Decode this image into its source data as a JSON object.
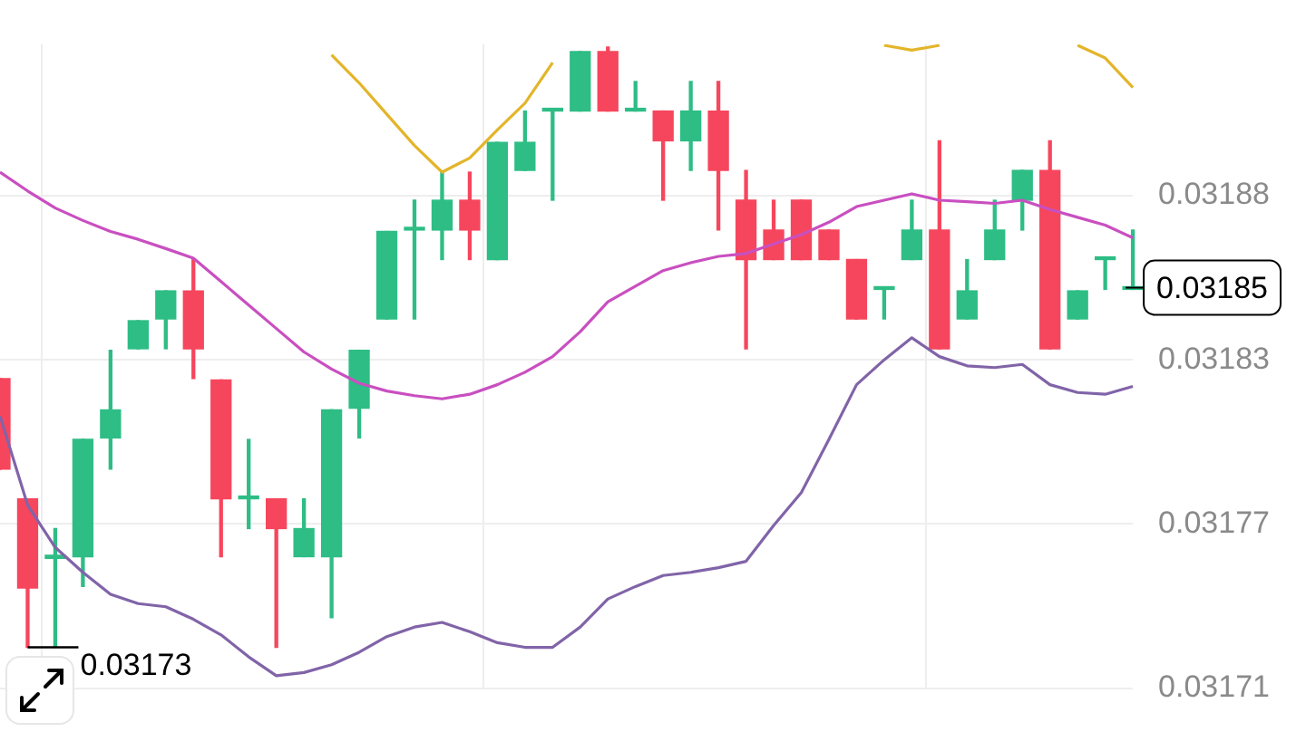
{
  "chart_data": {
    "type": "candlestick",
    "categories": [
      null,
      null,
      null,
      null,
      null,
      null,
      null,
      null,
      null,
      null,
      null,
      null,
      null,
      null,
      null,
      null,
      null,
      null,
      null,
      null,
      null,
      null,
      null,
      null,
      null,
      null,
      null,
      null,
      null,
      null,
      null,
      null,
      null,
      null,
      null,
      null,
      null,
      null,
      null,
      null,
      null,
      null
    ],
    "ohlc": [
      [
        0.0318198,
        0.0318198,
        0.0317885,
        0.0317885
      ],
      [
        0.0317783,
        0.0317783,
        0.031727,
        0.0317475
      ],
      [
        0.0317577,
        0.031768,
        0.031727,
        0.0317588
      ],
      [
        0.0317583,
        0.0317988,
        0.031748,
        0.0317988
      ],
      [
        0.0317993,
        0.0318296,
        0.0317885,
        0.031809
      ],
      [
        0.0318301,
        0.0318398,
        0.0318301,
        0.0318398
      ],
      [
        0.0318404,
        0.0318501,
        0.0318301,
        0.0318501
      ],
      [
        0.0318501,
        0.0318609,
        0.0318198,
        0.0318301
      ],
      [
        0.0318193,
        0.0318193,
        0.0317583,
        0.0317783
      ],
      [
        0.0317783,
        0.0317988,
        0.031768,
        0.0317788
      ],
      [
        0.0317783,
        0.0317783,
        0.031727,
        0.031768
      ],
      [
        0.0317583,
        0.0317783,
        0.0317583,
        0.031768
      ],
      [
        0.0317583,
        0.031809,
        0.0317372,
        0.031809
      ],
      [
        0.0318096,
        0.0318296,
        0.0317993,
        0.0318296
      ],
      [
        0.0318404,
        0.0318706,
        0.0318404,
        0.0318706
      ],
      [
        0.0318711,
        0.0318814,
        0.0318404,
        0.0318717
      ],
      [
        0.0318711,
        0.0318911,
        0.0318609,
        0.0318814
      ],
      [
        0.0318814,
        0.0318911,
        0.0318609,
        0.0318711
      ],
      [
        0.0318609,
        0.0319014,
        0.0318609,
        0.0319014
      ],
      [
        0.0318917,
        0.0319122,
        0.0318917,
        0.0319014
      ],
      [
        0.0319122,
        0.0319127,
        0.0318814,
        0.0319127
      ],
      [
        0.0319122,
        0.0319327,
        0.0319122,
        0.0319327
      ],
      [
        0.0319327,
        0.0319343,
        0.0319122,
        0.0319122
      ],
      [
        0.0319122,
        0.0319224,
        0.0319122,
        0.0319127
      ],
      [
        0.0319122,
        0.0319122,
        0.0318814,
        0.0319019
      ],
      [
        0.0319019,
        0.0319224,
        0.0318917,
        0.0319122
      ],
      [
        0.0319122,
        0.0319224,
        0.0318711,
        0.0318917
      ],
      [
        0.0318814,
        0.0318917,
        0.0318301,
        0.0318609
      ],
      [
        0.0318711,
        0.0318814,
        0.0318609,
        0.0318609
      ],
      [
        0.0318814,
        0.0318814,
        0.0318609,
        0.0318609
      ],
      [
        0.0318711,
        0.0318711,
        0.0318609,
        0.0318609
      ],
      [
        0.0318609,
        0.0318609,
        0.0318404,
        0.0318404
      ],
      [
        0.0318506,
        0.0318512,
        0.0318404,
        0.0318512
      ],
      [
        0.0318609,
        0.0318814,
        0.0318609,
        0.0318711
      ],
      [
        0.0318711,
        0.0319019,
        0.0318301,
        0.0318301
      ],
      [
        0.0318404,
        0.0318609,
        0.0318404,
        0.0318501
      ],
      [
        0.0318609,
        0.0318814,
        0.0318609,
        0.0318711
      ],
      [
        0.0318814,
        0.0318917,
        0.0318711,
        0.0318917
      ],
      [
        0.0318917,
        0.0319019,
        0.0318301,
        0.0318301
      ],
      [
        0.0318404,
        0.0318501,
        0.0318404,
        0.0318501
      ],
      [
        0.0318609,
        0.0318614,
        0.0318506,
        0.0318614
      ],
      [
        0.0318506,
        0.0318711,
        0.0318506,
        0.0318512
      ]
    ],
    "colors": [
      "#f6465d",
      "#f6465d",
      "#2ebd85",
      "#2ebd85",
      "#2ebd85",
      "#2ebd85",
      "#2ebd85",
      "#f6465d",
      "#f6465d",
      "#2ebd85",
      "#f6465d",
      "#2ebd85",
      "#2ebd85",
      "#2ebd85",
      "#2ebd85",
      "#2ebd85",
      "#2ebd85",
      "#f6465d",
      "#2ebd85",
      "#2ebd85",
      "#2ebd85",
      "#2ebd85",
      "#f6465d",
      "#2ebd85",
      "#f6465d",
      "#2ebd85",
      "#f6465d",
      "#f6465d",
      "#f6465d",
      "#f6465d",
      "#f6465d",
      "#f6465d",
      "#2ebd85",
      "#2ebd85",
      "#f6465d",
      "#2ebd85",
      "#2ebd85",
      "#2ebd85",
      "#f6465d",
      "#2ebd85",
      "#2ebd85",
      "#2ebd85"
    ],
    "series": [
      {
        "type": "line",
        "color": "#e3b52a",
        "values": [
          null,
          null,
          null,
          null,
          null,
          null,
          null,
          null,
          null,
          null,
          null,
          null,
          0.0319316,
          0.0319219,
          0.0319111,
          0.0319003,
          0.0318911,
          0.031896,
          0.0319057,
          0.0319149,
          0.0319289,
          null,
          null,
          null,
          null,
          null,
          null,
          null,
          null,
          null,
          null,
          null,
          0.0319349,
          0.0319332,
          0.0319349,
          null,
          null,
          null,
          null,
          0.0319349,
          0.0319305,
          0.0319203
        ]
      },
      {
        "type": "line",
        "color": "#c94fc0",
        "values": [
          0.0318911,
          0.0318846,
          0.0318787,
          0.0318744,
          0.0318706,
          0.0318679,
          0.0318647,
          0.0318614,
          0.0318533,
          0.0318452,
          0.0318371,
          0.031829,
          0.0318231,
          0.0318182,
          0.0318155,
          0.0318139,
          0.0318128,
          0.0318144,
          0.0318177,
          0.031822,
          0.0318274,
          0.031836,
          0.0318463,
          0.0318517,
          0.0318571,
          0.0318598,
          0.031862,
          0.031863,
          0.0318663,
          0.0318695,
          0.0318738,
          0.0318792,
          0.0318814,
          0.0318836,
          0.0318814,
          0.0318809,
          0.0318803,
          0.0318814,
          0.0318782,
          0.0318755,
          0.0318728,
          0.0318684
        ]
      },
      {
        "type": "line",
        "color": "#8164a8",
        "values": [
          0.0318069,
          0.0317761,
          0.0317615,
          0.0317529,
          0.0317453,
          0.0317421,
          0.031741,
          0.0317367,
          0.0317313,
          0.0317237,
          0.0317172,
          0.0317183,
          0.031721,
          0.0317253,
          0.0317307,
          0.031734,
          0.0317356,
          0.0317324,
          0.0317286,
          0.031727,
          0.031727,
          0.031734,
          0.0317437,
          0.031748,
          0.0317518,
          0.0317529,
          0.0317545,
          0.0317567,
          0.0317691,
          0.0317804,
          0.0317988,
          0.0318177,
          0.0318263,
          0.0318339,
          0.0318274,
          0.0318242,
          0.0318236,
          0.0318247,
          0.0318177,
          0.031815,
          0.0318144,
          0.0318171
        ]
      }
    ],
    "ylim": [
      0.0317129,
      0.0319354
    ],
    "yticks": [
      {
        "value": 0.031883,
        "label": "0.03188"
      },
      {
        "value": 0.0318263,
        "label": "0.03183"
      },
      {
        "value": 0.0317696,
        "label": "0.03177"
      },
      {
        "value": 0.0317129,
        "label": "0.03171"
      }
    ],
    "annotations": [
      "0.03185",
      "0.03173"
    ],
    "grid": true,
    "tick_labels": "y",
    "marker": "none",
    "line_style": "solid",
    "legend": false
  }
}
